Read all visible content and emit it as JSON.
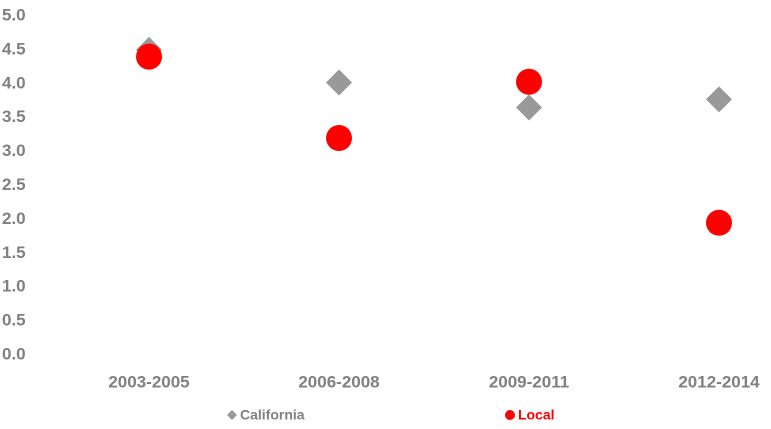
{
  "chart_data": {
    "type": "scatter",
    "categories": [
      "2003-2005",
      "2006-2008",
      "2009-2011",
      "2012-2014"
    ],
    "series": [
      {
        "name": "California",
        "color": "#999999",
        "marker": "diamond",
        "values": [
          4.5,
          4.02,
          3.65,
          3.77
        ]
      },
      {
        "name": "Local",
        "color": "#ff0000",
        "marker": "circle",
        "values": [
          4.4,
          3.2,
          4.03,
          1.95
        ]
      }
    ],
    "ylim": [
      0,
      5
    ],
    "yticks": [
      {
        "value": 0,
        "label": "0.0"
      },
      0.5,
      {
        "value": 1,
        "label": "1.0"
      },
      1.5,
      {
        "value": 2,
        "label": "2.0"
      },
      2.5,
      {
        "value": 3,
        "label": "3.0"
      },
      3.5,
      {
        "value": 4,
        "label": "4.0"
      },
      4.5,
      {
        "value": 5,
        "label": "5.0"
      }
    ],
    "grid": false,
    "legend": "bottom"
  }
}
